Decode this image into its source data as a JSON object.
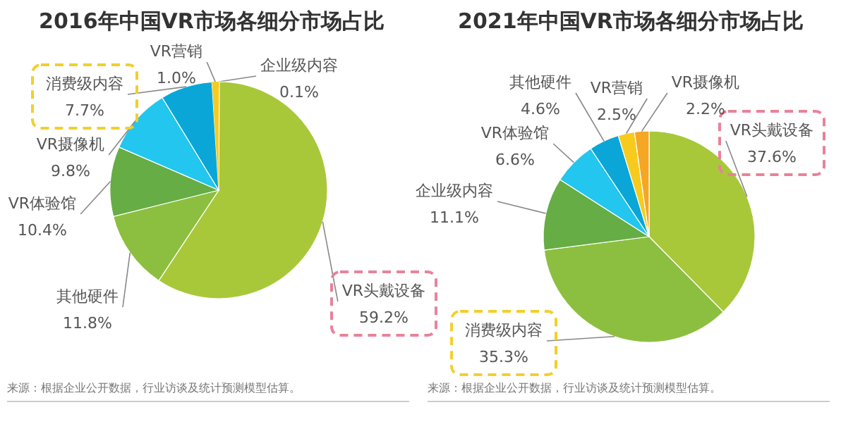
{
  "chart_data": [
    {
      "type": "pie",
      "title": "2016年中国VR市场各细分市场占比",
      "categories": [
        "企业级内容",
        "VR头戴设备",
        "其他硬件",
        "VR体验馆",
        "VR摄像机",
        "消费级内容",
        "VR营销"
      ],
      "values": [
        0.1,
        59.2,
        11.8,
        10.4,
        9.8,
        7.7,
        1.0
      ],
      "value_labels": [
        "0.1%",
        "59.2%",
        "11.8%",
        "10.4%",
        "9.8%",
        "7.7%",
        "1.0%"
      ],
      "colors": [
        "#f5a623",
        "#a8c83a",
        "#8cbf3f",
        "#66ad45",
        "#22c6ee",
        "#0aa6d8",
        "#f7cb1e"
      ],
      "annotations": [
        "来源：根据企业公开数据，行业访谈及统计预测模型估算。"
      ]
    },
    {
      "type": "pie",
      "title": "2021年中国VR市场各细分市场占比",
      "categories": [
        "VR头戴设备",
        "消费级内容",
        "企业级内容",
        "VR体验馆",
        "其他硬件",
        "VR营销",
        "VR摄像机"
      ],
      "values": [
        37.6,
        35.3,
        11.1,
        6.6,
        4.6,
        2.5,
        2.2
      ],
      "value_labels": [
        "37.6%",
        "35.3%",
        "11.1%",
        "6.6%",
        "4.6%",
        "2.5%",
        "2.2%"
      ],
      "colors": [
        "#a8c83a",
        "#8cbf3f",
        "#66ad45",
        "#22c6ee",
        "#0aa6d8",
        "#f7cb1e",
        "#f5a623"
      ],
      "annotations": [
        "来源：根据企业公开数据，行业访谈及统计预测模型估算。"
      ]
    }
  ]
}
